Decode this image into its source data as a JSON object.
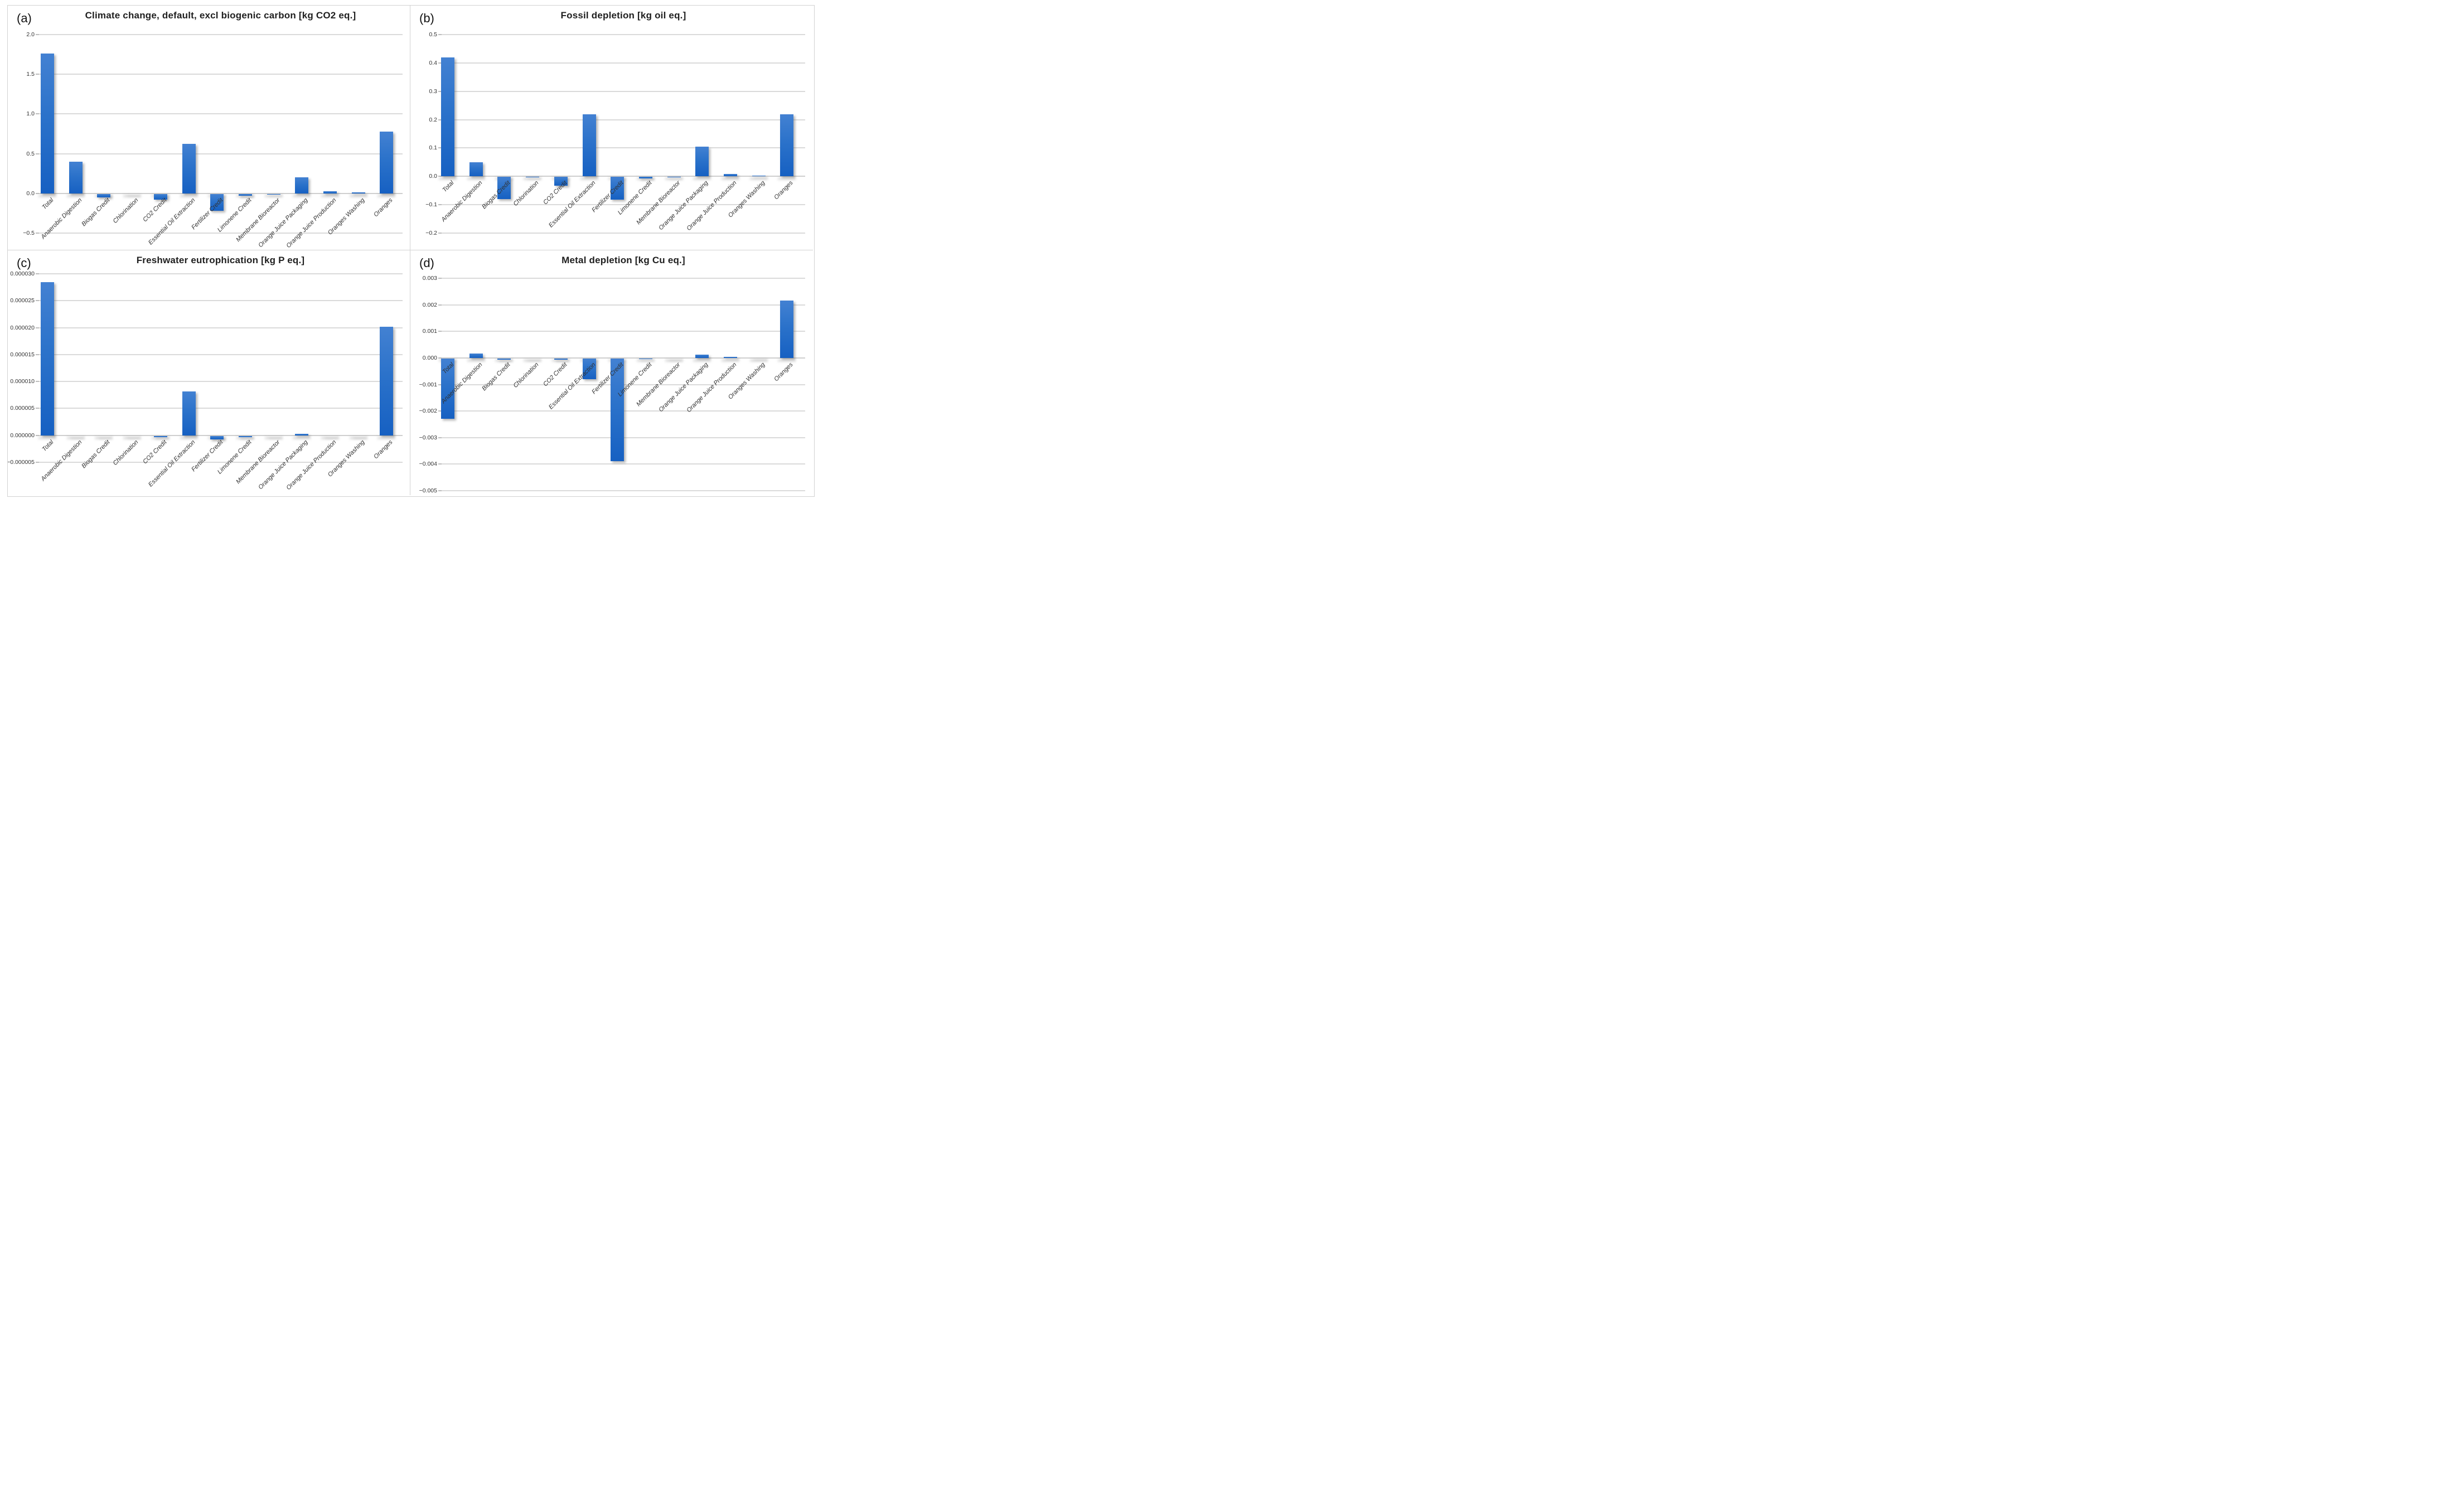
{
  "figure": {
    "description": "Four-panel bar chart figure of life cycle impact contributions",
    "panel_letters": [
      "(a)",
      "(b)",
      "(c)",
      "(d)"
    ]
  },
  "colors": {
    "bar_gradient_top": "#4381d2",
    "bar_gradient_bottom": "#1660c2",
    "gridline": "#dadada",
    "panel_border": "#d2d2d2",
    "tick_text": "#333333",
    "title_text": "#1f1f1f"
  },
  "categories": [
    "Total",
    "Anaerobic Digestion",
    "Biogas Credit",
    "Chlorination",
    "CO2 Credit",
    "Essential Oil Extraction",
    "Fertilizer Credit",
    "Limonene Credit",
    "Membrane Bioreactor",
    "Orange Juice Packaging",
    "Orange Juice Production",
    "Oranges Washing",
    "Oranges"
  ],
  "chart_data": [
    {
      "panel_label": "(a)",
      "type": "bar",
      "title": "Climate change, default, excl biogenic carbon [kg CO2 eq.]",
      "xlabel": "",
      "ylabel": "",
      "ylim": [
        -0.5,
        2.0
      ],
      "grid": true,
      "legend": "none",
      "ytick_labels": [
        "2.0",
        "1.5",
        "1.0",
        "0.5",
        "0.0",
        "−0.5"
      ],
      "ytick_values": [
        2.0,
        1.5,
        1.0,
        0.5,
        0.0,
        -0.5
      ],
      "values": [
        1.76,
        0.4,
        -0.045,
        -0.003,
        -0.075,
        0.625,
        -0.21,
        -0.02,
        -0.005,
        0.2,
        0.025,
        0.015,
        0.78
      ]
    },
    {
      "panel_label": "(b)",
      "type": "bar",
      "title": "Fossil depletion [kg oil eq.]",
      "xlabel": "",
      "ylabel": "",
      "ylim": [
        -0.2,
        0.5
      ],
      "grid": true,
      "legend": "none",
      "ytick_labels": [
        "0.5",
        "0.4",
        "0.3",
        "0.2",
        "0.1",
        "0.0",
        "−0.1",
        "−0.2"
      ],
      "ytick_values": [
        0.5,
        0.4,
        0.3,
        0.2,
        0.1,
        0.0,
        -0.1,
        -0.2
      ],
      "values": [
        0.42,
        0.049,
        -0.078,
        -0.001,
        -0.03,
        0.218,
        -0.08,
        -0.006,
        -0.001,
        0.105,
        0.008,
        0.003,
        0.218
      ]
    },
    {
      "panel_label": "(c)",
      "type": "bar",
      "title": "Freshwater eutrophication [kg P eq.]",
      "xlabel": "",
      "ylabel": "",
      "ylim": [
        -5e-06,
        3e-05
      ],
      "grid": true,
      "legend": "none",
      "ytick_labels": [
        "0.000030",
        "0.000025",
        "0.000020",
        "0.000015",
        "0.000010",
        "0.000005",
        "0.000000",
        "−0.000005"
      ],
      "ytick_values": [
        3e-05,
        2.5e-05,
        2e-05,
        1.5e-05,
        1e-05,
        5e-06,
        0.0,
        -5e-06
      ],
      "values": [
        2.84e-05,
        -5e-08,
        -5e-08,
        -5e-08,
        -2e-07,
        8.2e-06,
        -7e-07,
        -2.6e-07,
        -5e-08,
        2.3e-07,
        -5e-08,
        -5e-08,
        2.02e-05
      ]
    },
    {
      "panel_label": "(d)",
      "type": "bar",
      "title": "Metal depletion [kg Cu eq.]",
      "xlabel": "",
      "ylabel": "",
      "ylim": [
        -0.005,
        0.003
      ],
      "grid": true,
      "legend": "none",
      "ytick_labels": [
        "0.003",
        "0.002",
        "0.001",
        "0.000",
        "−0.001",
        "−0.002",
        "−0.003",
        "−0.004",
        "−0.005"
      ],
      "ytick_values": [
        0.003,
        0.002,
        0.001,
        0.0,
        -0.001,
        -0.002,
        -0.003,
        -0.004,
        -0.005
      ],
      "values": [
        -0.00227,
        0.000175,
        -5.3e-05,
        -5e-06,
        -4e-05,
        -0.00077,
        -0.00387,
        -2e-05,
        -5e-06,
        0.00012,
        3.6e-05,
        5e-06,
        0.00216
      ]
    }
  ]
}
